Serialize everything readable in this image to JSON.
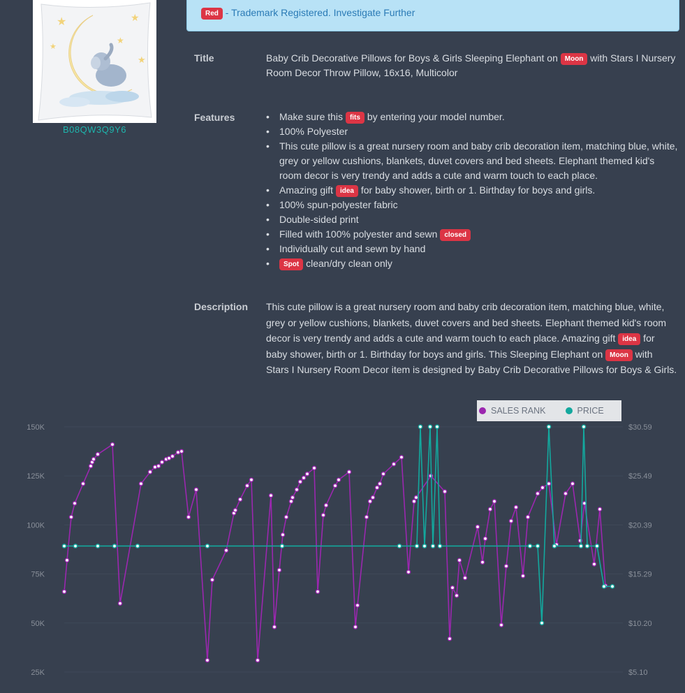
{
  "product": {
    "asin": "B08QW3Q9Y6"
  },
  "alert": {
    "badge": "Red",
    "text": " - Trademark Registered. Investigate Further"
  },
  "title_section": {
    "label": "Title",
    "parts": [
      "Baby Crib Decorative Pillows for Boys & Girls Sleeping Elephant on ",
      "Moon",
      " with Stars I Nursery Room Decor Throw Pillow, 16x16, Multicolor"
    ]
  },
  "features_section": {
    "label": "Features",
    "items": [
      [
        "Make sure this ",
        "fits",
        " by entering your model number."
      ],
      [
        "100% Polyester"
      ],
      [
        "This cute pillow is a great nursery room and baby crib decoration item, matching blue, white, grey or yellow cushions, blankets, duvet covers and bed sheets. Elephant themed kid's room decor is very trendy and adds a cute and warm touch to each place."
      ],
      [
        "Amazing gift ",
        "idea",
        " for baby shower, birth or 1. Birthday for boys and girls."
      ],
      [
        "100% spun-polyester fabric"
      ],
      [
        "Double-sided print"
      ],
      [
        "Filled with 100% polyester and sewn ",
        "closed",
        ""
      ],
      [
        "Individually cut and sewn by hand"
      ],
      [
        "",
        "Spot",
        " clean/dry clean only"
      ]
    ]
  },
  "description_section": {
    "label": "Description",
    "parts": [
      "This cute pillow is a great nursery room and baby crib decoration item, matching blue, white, grey or yellow cushions, blankets, duvet covers and bed sheets. Elephant themed kid's room decor is very trendy and adds a cute and warm touch to each place. Amazing gift ",
      "idea",
      " for baby shower, birth or 1. Birthday for boys and girls. This Sleeping Elephant on ",
      "Moon",
      " with Stars I Nursery Room Decor item is designed by Baby Crib Decorative Pillows for Boys & Girls."
    ]
  },
  "colors": {
    "background": "#37404f",
    "sales_rank": "#9b27af",
    "price": "#13a89e",
    "badge": "#dc3545",
    "link": "#1eb5ad"
  },
  "chart_data": {
    "type": "line",
    "legend": [
      {
        "name": "SALES RANK",
        "color": "#9b27af"
      },
      {
        "name": "PRICE",
        "color": "#13a89e"
      }
    ],
    "legend_position": "top-right",
    "left_axis": {
      "ticks": [
        "150K",
        "125K",
        "100K",
        "75K",
        "50K",
        "25K"
      ],
      "values": [
        150000,
        125000,
        100000,
        75000,
        50000,
        25000
      ]
    },
    "right_axis": {
      "ticks": [
        "$30.59",
        "$25.49",
        "$20.39",
        "$15.29",
        "$10.20",
        "$5.10"
      ],
      "values": [
        30.59,
        25.49,
        20.39,
        15.29,
        10.2,
        5.1
      ]
    },
    "x_range": [
      0,
      100
    ],
    "series": [
      {
        "name": "SALES RANK",
        "points": [
          [
            0.0,
            66000
          ],
          [
            0.4,
            82000
          ],
          [
            1.0,
            104000
          ],
          [
            1.5,
            111000
          ],
          [
            2.7,
            121000
          ],
          [
            3.8,
            130000
          ],
          [
            4.0,
            132000
          ],
          [
            4.2,
            133500
          ],
          [
            4.8,
            136000
          ],
          [
            6.9,
            141000
          ],
          [
            8.0,
            60000
          ],
          [
            11.0,
            121000
          ],
          [
            12.3,
            127000
          ],
          [
            13.0,
            129500
          ],
          [
            13.5,
            130000
          ],
          [
            14.0,
            132000
          ],
          [
            14.6,
            133500
          ],
          [
            15.0,
            134000
          ],
          [
            15.5,
            135000
          ],
          [
            16.3,
            137000
          ],
          [
            16.8,
            137500
          ],
          [
            17.8,
            104000
          ],
          [
            18.9,
            118000
          ],
          [
            20.5,
            31000
          ],
          [
            21.2,
            72000
          ],
          [
            23.2,
            87000
          ],
          [
            24.3,
            106000
          ],
          [
            24.5,
            107500
          ],
          [
            25.2,
            113000
          ],
          [
            26.2,
            120000
          ],
          [
            26.8,
            123000
          ],
          [
            27.7,
            31000
          ],
          [
            29.6,
            115000
          ],
          [
            30.1,
            48000
          ],
          [
            30.8,
            77000
          ],
          [
            31.3,
            95000
          ],
          [
            31.8,
            104000
          ],
          [
            32.5,
            112000
          ],
          [
            32.7,
            114000
          ],
          [
            33.3,
            118000
          ],
          [
            33.8,
            122000
          ],
          [
            34.3,
            124000
          ],
          [
            34.8,
            126000
          ],
          [
            35.8,
            129000
          ],
          [
            36.3,
            66000
          ],
          [
            37.1,
            105000
          ],
          [
            37.5,
            110000
          ],
          [
            38.8,
            120000
          ],
          [
            39.3,
            123000
          ],
          [
            40.8,
            127000
          ],
          [
            41.7,
            48000
          ],
          [
            42.0,
            59000
          ],
          [
            43.3,
            104000
          ],
          [
            43.8,
            112000
          ],
          [
            44.2,
            114000
          ],
          [
            44.8,
            119000
          ],
          [
            45.2,
            121000
          ],
          [
            45.7,
            126000
          ],
          [
            47.2,
            131000
          ],
          [
            48.3,
            134500
          ],
          [
            49.3,
            76000
          ],
          [
            50.1,
            112000
          ],
          [
            50.4,
            114000
          ],
          [
            52.5,
            125000
          ],
          [
            54.5,
            117000
          ],
          [
            55.2,
            42000
          ],
          [
            55.6,
            68000
          ],
          [
            56.2,
            64000
          ],
          [
            56.6,
            82000
          ],
          [
            57.4,
            73000
          ],
          [
            59.2,
            99000
          ],
          [
            59.9,
            81000
          ],
          [
            60.3,
            93000
          ],
          [
            61.0,
            108000
          ],
          [
            61.6,
            112000
          ],
          [
            62.6,
            49000
          ],
          [
            63.3,
            79000
          ],
          [
            64.0,
            102000
          ],
          [
            64.7,
            109000
          ],
          [
            65.7,
            74000
          ],
          [
            66.4,
            104000
          ],
          [
            67.8,
            116000
          ],
          [
            68.5,
            119000
          ],
          [
            69.4,
            121000
          ],
          [
            70.5,
            90000
          ],
          [
            71.8,
            116000
          ],
          [
            72.8,
            121000
          ],
          [
            73.9,
            92000
          ],
          [
            74.5,
            111000
          ],
          [
            75.9,
            80000
          ],
          [
            76.7,
            108000
          ],
          [
            77.5,
            69000
          ]
        ]
      },
      {
        "name": "PRICE",
        "points": [
          [
            0.0,
            18.2
          ],
          [
            1.6,
            18.2
          ],
          [
            4.8,
            18.2
          ],
          [
            7.2,
            18.2
          ],
          [
            10.5,
            18.2
          ],
          [
            20.5,
            18.2
          ],
          [
            31.2,
            18.2
          ],
          [
            48.0,
            18.2
          ],
          [
            50.5,
            18.2
          ],
          [
            51.0,
            30.6
          ],
          [
            51.6,
            18.2
          ],
          [
            52.4,
            30.6
          ],
          [
            52.8,
            18.2
          ],
          [
            53.4,
            30.6
          ],
          [
            53.8,
            18.2
          ],
          [
            66.7,
            18.2
          ],
          [
            67.8,
            18.2
          ],
          [
            68.4,
            10.2
          ],
          [
            69.4,
            30.6
          ],
          [
            70.2,
            18.2
          ],
          [
            74.0,
            18.2
          ],
          [
            74.4,
            30.6
          ],
          [
            74.9,
            18.2
          ],
          [
            76.3,
            18.2
          ],
          [
            77.3,
            14.0
          ],
          [
            78.5,
            14.0
          ]
        ]
      }
    ]
  }
}
